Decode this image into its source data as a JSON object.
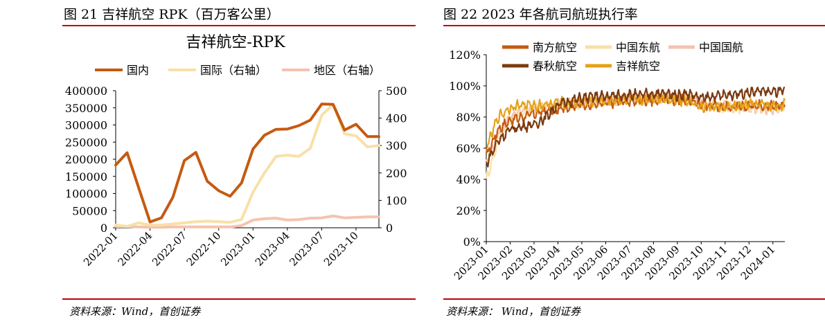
{
  "left": {
    "figure_title": "图 21 吉祥航空 RPK（百万客公里）",
    "source": "资料来源：Wind，首创证券"
  },
  "right": {
    "figure_title": "图 22 2023 年各航司航班执行率",
    "source": "资料来源： Wind，首创证券"
  },
  "chart_data": [
    {
      "type": "line",
      "title": "吉祥航空-RPK",
      "x": [
        "2022-01",
        "2022-02",
        "2022-03",
        "2022-04",
        "2022-05",
        "2022-06",
        "2022-07",
        "2022-08",
        "2022-09",
        "2022-10",
        "2022-11",
        "2022-12",
        "2023-01",
        "2023-02",
        "2023-03",
        "2023-04",
        "2023-05",
        "2023-06",
        "2023-07",
        "2023-08",
        "2023-09",
        "2023-10",
        "2023-11",
        "2023-12"
      ],
      "x_tick_labels": [
        "2022-01",
        "2022-04",
        "2022-07",
        "2022-10",
        "2023-01",
        "2023-04",
        "2023-07",
        "2023-10"
      ],
      "y_left": {
        "ylim": [
          0,
          400000
        ],
        "ticks": [
          "0",
          "50000",
          "100000",
          "150000",
          "200000",
          "250000",
          "300000",
          "350000",
          "400000"
        ]
      },
      "y_right": {
        "ylim": [
          0,
          500
        ],
        "ticks": [
          "0",
          "100",
          "200",
          "300",
          "400",
          "500"
        ]
      },
      "legend_position": "top",
      "series": [
        {
          "name": "国内",
          "axis": "left",
          "color": "#C55A11",
          "values": [
            183000,
            219000,
            118000,
            17000,
            29000,
            89000,
            196000,
            220000,
            136000,
            108000,
            92000,
            131000,
            230000,
            270000,
            287000,
            288000,
            298000,
            314000,
            361000,
            360000,
            285000,
            302000,
            266000,
            266000
          ]
        },
        {
          "name": "国际（右轴）",
          "axis": "right",
          "color": "#F8E0A8",
          "values": [
            10,
            5,
            18,
            10,
            10,
            14,
            18,
            22,
            24,
            22,
            20,
            30,
            130,
            200,
            260,
            265,
            260,
            290,
            410,
            450,
            343,
            335,
            295,
            300
          ]
        },
        {
          "name": "地区（右轴）",
          "axis": "right",
          "color": "#F4C3AF",
          "values": [
            5,
            5,
            3,
            2,
            2,
            3,
            3,
            3,
            3,
            3,
            3,
            8,
            28,
            33,
            35,
            28,
            30,
            35,
            36,
            43,
            36,
            38,
            40,
            40
          ]
        }
      ]
    },
    {
      "type": "line",
      "x_tick_labels": [
        "2023-01",
        "2023-02",
        "2023-03",
        "2023-04",
        "2023-05",
        "2023-06",
        "2023-07",
        "2023-08",
        "2023-09",
        "2023-10",
        "2023-11",
        "2023-12",
        "2024-01"
      ],
      "ylim": [
        0,
        120
      ],
      "y_ticks": [
        "0%",
        "20%",
        "40%",
        "60%",
        "80%",
        "100%",
        "120%"
      ],
      "legend_position": "top",
      "x_months": [
        0,
        0.5,
        1,
        1.5,
        2,
        2.5,
        3,
        3.5,
        4,
        4.5,
        5,
        5.5,
        6,
        6.5,
        7,
        7.5,
        8,
        8.5,
        9,
        9.5,
        10,
        10.5,
        11,
        11.5,
        12,
        12.5
      ],
      "series": [
        {
          "name": "南方航空",
          "color": "#C55A11",
          "values": [
            55,
            72,
            78,
            80,
            82,
            84,
            85,
            87,
            88,
            88,
            89,
            90,
            90,
            91,
            91,
            92,
            91,
            91,
            88,
            88,
            86,
            86,
            87,
            88,
            87,
            88
          ]
        },
        {
          "name": "中国东航",
          "color": "#F8E0A8",
          "values": [
            40,
            65,
            78,
            83,
            85,
            86,
            87,
            88,
            89,
            89,
            90,
            90,
            91,
            91,
            92,
            92,
            92,
            91,
            88,
            87,
            86,
            86,
            87,
            86,
            85,
            86
          ]
        },
        {
          "name": "中国国航",
          "color": "#F4C3AF",
          "values": [
            50,
            70,
            80,
            84,
            86,
            87,
            88,
            89,
            90,
            90,
            91,
            91,
            92,
            92,
            93,
            93,
            93,
            92,
            88,
            88,
            87,
            87,
            86,
            85,
            84,
            86
          ]
        },
        {
          "name": "春秋航空",
          "color": "#7B3A10",
          "values": [
            50,
            65,
            72,
            74,
            75,
            80,
            88,
            90,
            92,
            93,
            93,
            94,
            94,
            94,
            95,
            95,
            94,
            95,
            92,
            93,
            94,
            95,
            96,
            97,
            96,
            97
          ]
        },
        {
          "name": "吉祥航空",
          "color": "#E5A11A",
          "values": [
            60,
            80,
            86,
            88,
            87,
            88,
            89,
            89,
            90,
            90,
            91,
            91,
            91,
            91,
            92,
            92,
            91,
            91,
            86,
            87,
            86,
            87,
            88,
            88,
            87,
            88
          ]
        }
      ]
    }
  ]
}
